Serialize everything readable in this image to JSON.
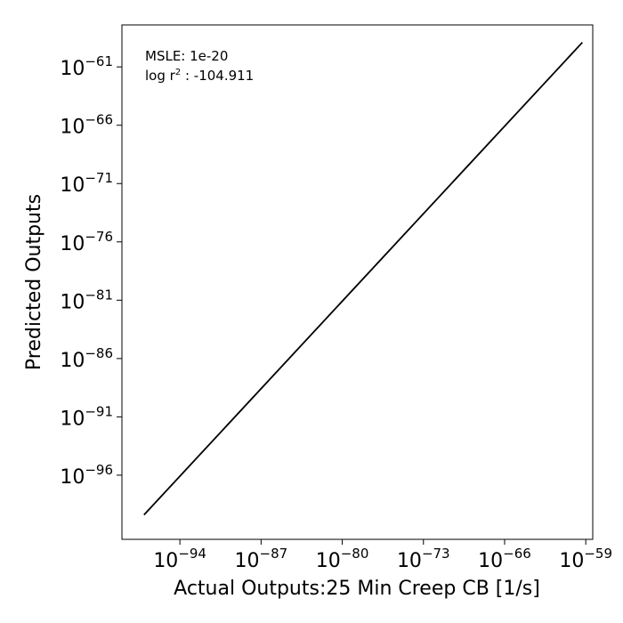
{
  "chart_data": {
    "type": "line",
    "title": "",
    "xlabel": "Actual Outputs:25 Min Creep CB [1/s]",
    "ylabel": "Predicted Outputs",
    "xscale": "log",
    "yscale": "log",
    "grid": false,
    "legend": "none",
    "line_color": "#000000",
    "xlim_log10": [
      -99.0,
      -58.4
    ],
    "ylim_log10": [
      -101.5,
      -57.4
    ],
    "x_ticks": [
      {
        "base": "10",
        "exp": "−94",
        "log10": -94
      },
      {
        "base": "10",
        "exp": "−87",
        "log10": -87
      },
      {
        "base": "10",
        "exp": "−80",
        "log10": -80
      },
      {
        "base": "10",
        "exp": "−73",
        "log10": -73
      },
      {
        "base": "10",
        "exp": "−66",
        "log10": -66
      },
      {
        "base": "10",
        "exp": "−59",
        "log10": -59
      }
    ],
    "y_ticks": [
      {
        "base": "10",
        "exp": "−61",
        "log10": -61
      },
      {
        "base": "10",
        "exp": "−66",
        "log10": -66
      },
      {
        "base": "10",
        "exp": "−71",
        "log10": -71
      },
      {
        "base": "10",
        "exp": "−76",
        "log10": -76
      },
      {
        "base": "10",
        "exp": "−81",
        "log10": -81
      },
      {
        "base": "10",
        "exp": "−86",
        "log10": -86
      },
      {
        "base": "10",
        "exp": "−91",
        "log10": -91
      },
      {
        "base": "10",
        "exp": "−96",
        "log10": -96
      }
    ],
    "series": [
      {
        "x_log10": [
          -97.1,
          -59.3
        ],
        "y_log10": [
          -99.4,
          -58.9
        ]
      }
    ],
    "annotations": {
      "msle": "MSLE: 1e-20",
      "r2_prefix": "log r",
      "r2_sup": "2",
      "r2_suffix": " : -104.911"
    }
  }
}
